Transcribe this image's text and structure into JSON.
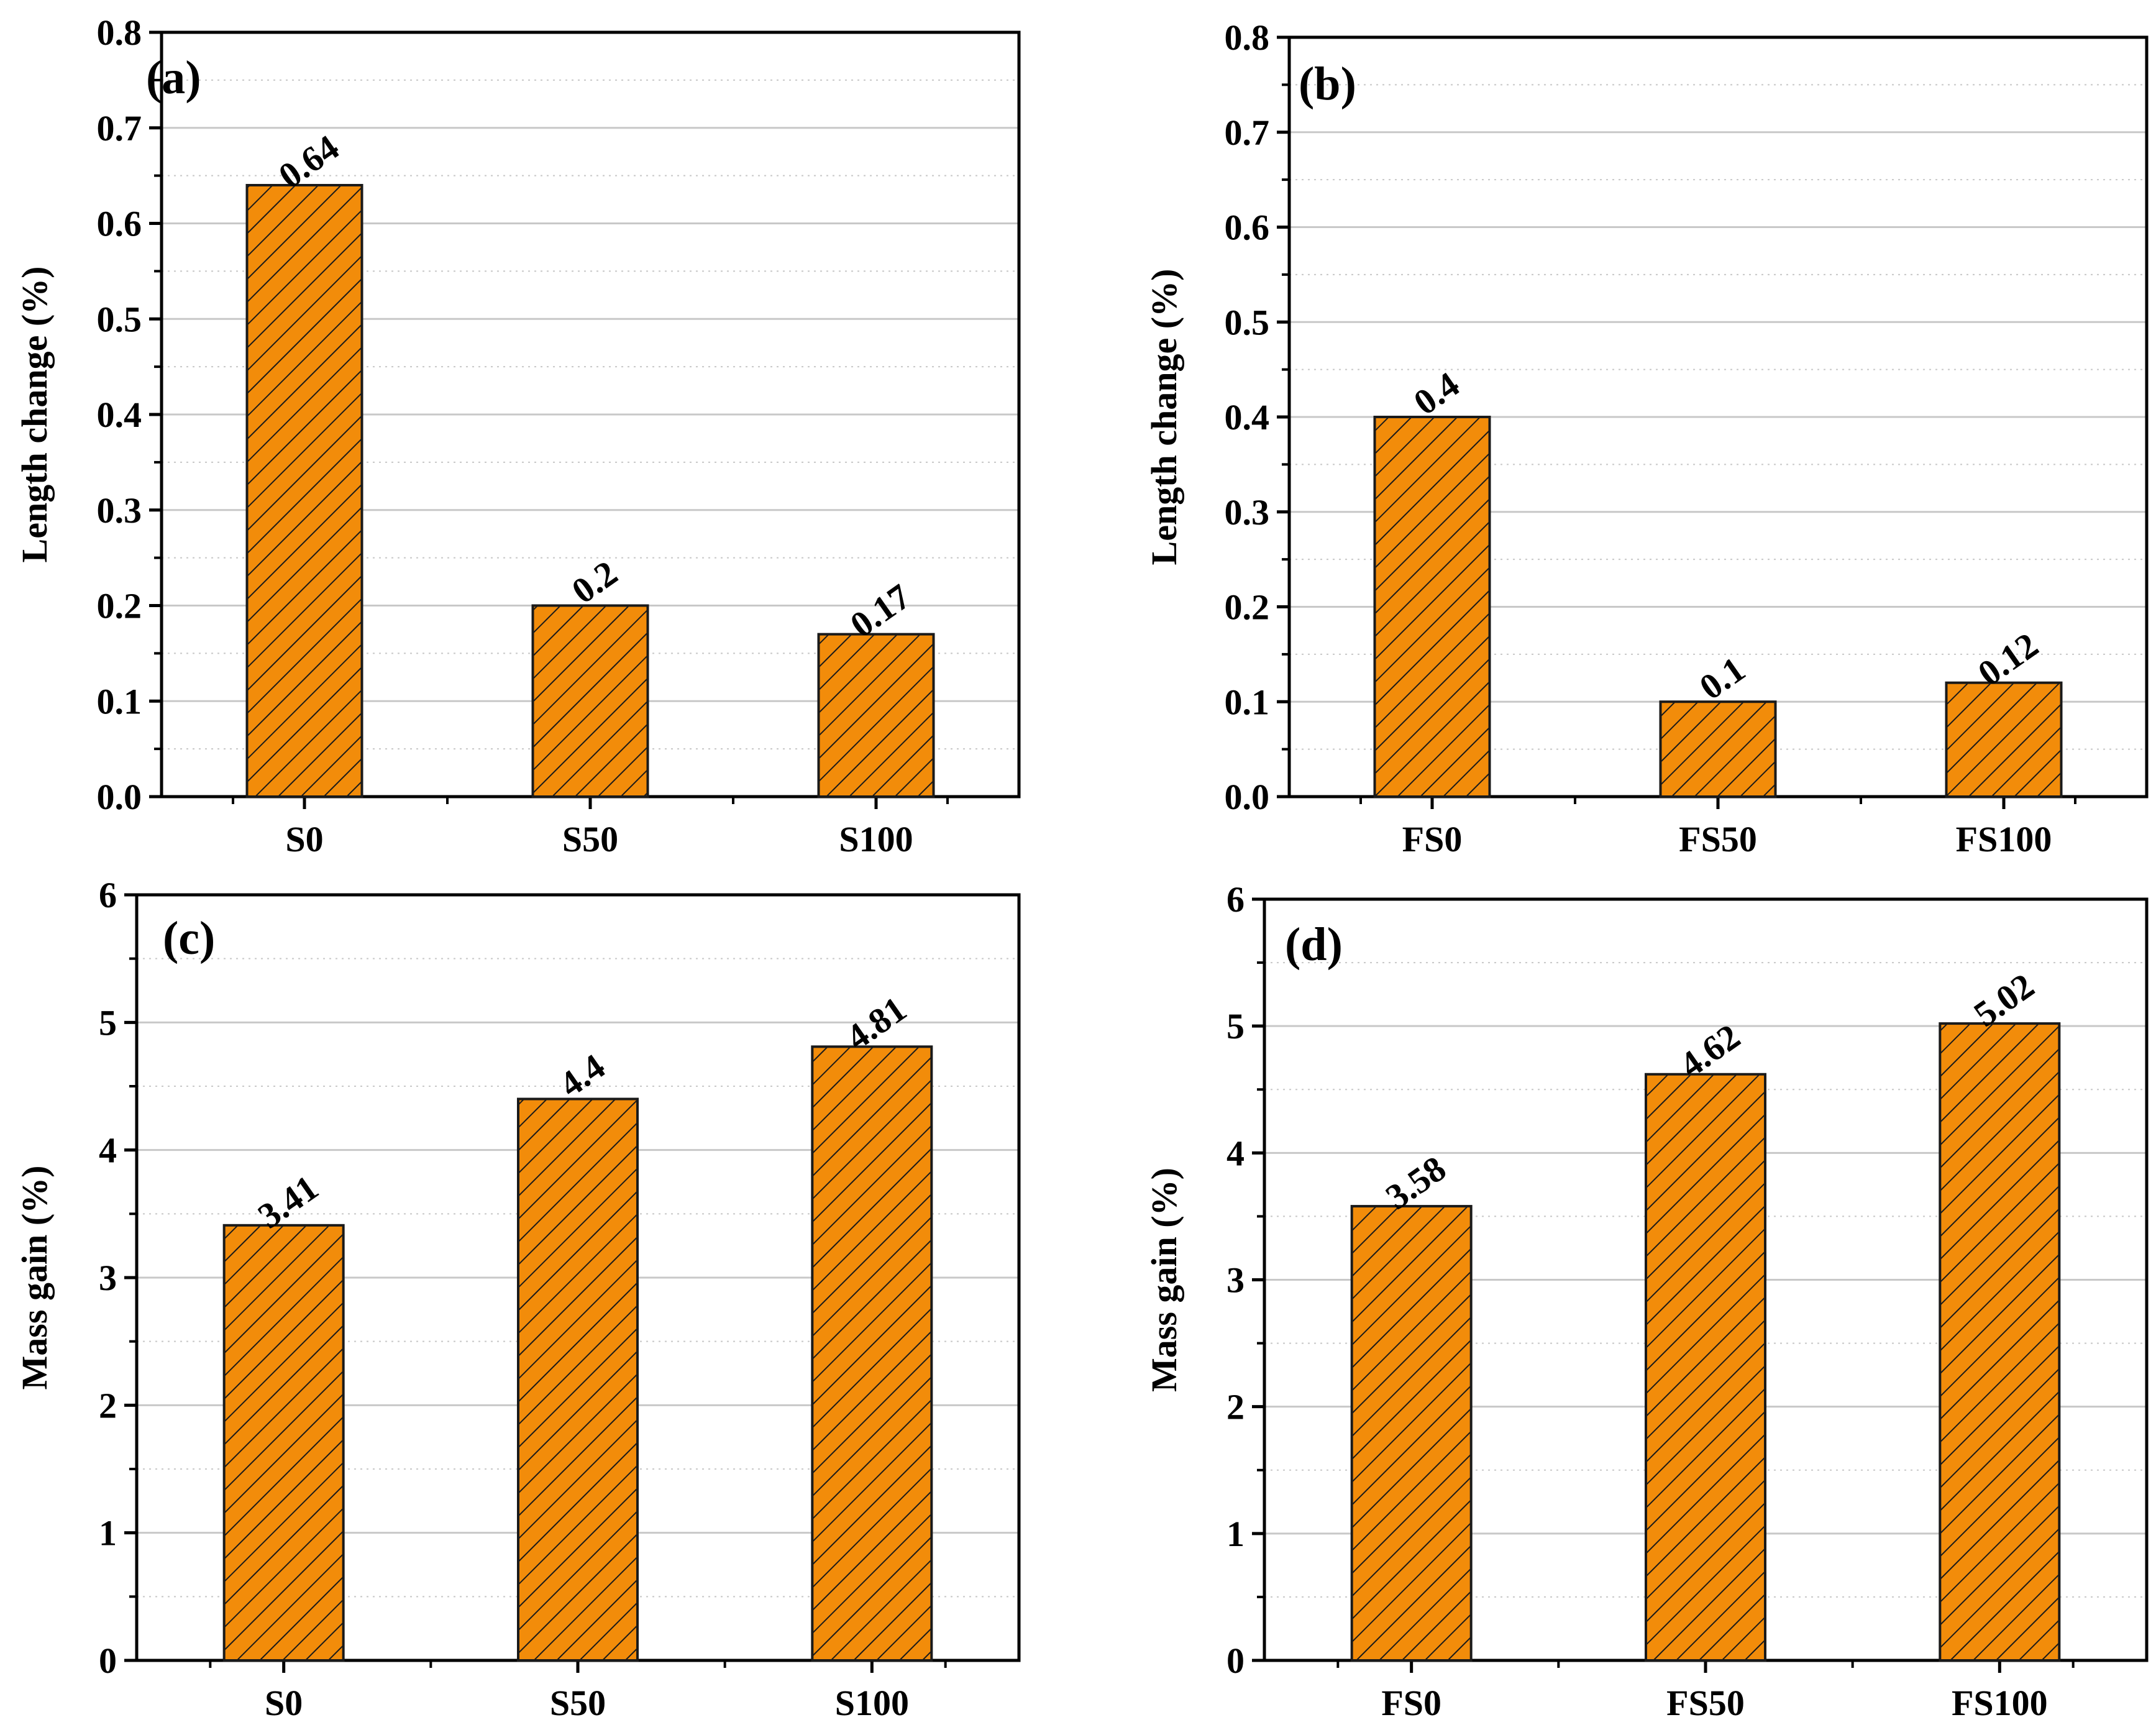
{
  "figure": {
    "bar_fill": "#F28C0A",
    "bar_stroke": "#1a1a1a",
    "hatch_color": "#1a1a1a",
    "grid_color": "#c8c8c8",
    "axis_color": "#000000"
  },
  "chart_data": [
    {
      "id": "a",
      "panel_label": "(a)",
      "type": "bar",
      "categories": [
        "S0",
        "S50",
        "S100"
      ],
      "values": [
        0.64,
        0.2,
        0.17
      ],
      "value_labels": [
        "0.64",
        "0.2",
        "0.17"
      ],
      "xlabel": "",
      "ylabel": "Length change (%)",
      "ylim": [
        0,
        0.8
      ],
      "yticks": [
        0.0,
        0.1,
        0.2,
        0.3,
        0.4,
        0.5,
        0.6,
        0.7,
        0.8
      ],
      "ytick_labels": [
        "0.0",
        "0.1",
        "0.2",
        "0.3",
        "0.4",
        "0.5",
        "0.6",
        "0.7",
        "0.8"
      ],
      "grid": true
    },
    {
      "id": "b",
      "panel_label": "(b)",
      "type": "bar",
      "categories": [
        "FS0",
        "FS50",
        "FS100"
      ],
      "values": [
        0.4,
        0.1,
        0.12
      ],
      "value_labels": [
        "0.4",
        "0.1",
        "0.12"
      ],
      "xlabel": "",
      "ylabel": "Length change (%)",
      "ylim": [
        0,
        0.8
      ],
      "yticks": [
        0.0,
        0.1,
        0.2,
        0.3,
        0.4,
        0.5,
        0.6,
        0.7,
        0.8
      ],
      "ytick_labels": [
        "0.0",
        "0.1",
        "0.2",
        "0.3",
        "0.4",
        "0.5",
        "0.6",
        "0.7",
        "0.8"
      ],
      "grid": true
    },
    {
      "id": "c",
      "panel_label": "(c)",
      "type": "bar",
      "categories": [
        "S0",
        "S50",
        "S100"
      ],
      "values": [
        3.41,
        4.4,
        4.81
      ],
      "value_labels": [
        "3.41",
        "4.4",
        "4.81"
      ],
      "xlabel": "",
      "ylabel": "Mass gain (%)",
      "ylim": [
        0,
        6
      ],
      "yticks": [
        0,
        1,
        2,
        3,
        4,
        5,
        6
      ],
      "ytick_labels": [
        "0",
        "1",
        "2",
        "3",
        "4",
        "5",
        "6"
      ],
      "grid": true
    },
    {
      "id": "d",
      "panel_label": "(d)",
      "type": "bar",
      "categories": [
        "FS0",
        "FS50",
        "FS100"
      ],
      "values": [
        3.58,
        4.62,
        5.02
      ],
      "value_labels": [
        "3.58",
        "4.62",
        "5.02"
      ],
      "xlabel": "",
      "ylabel": "Mass gain (%)",
      "ylim": [
        0,
        6
      ],
      "yticks": [
        0,
        1,
        2,
        3,
        4,
        5,
        6
      ],
      "ytick_labels": [
        "0",
        "1",
        "2",
        "3",
        "4",
        "5",
        "6"
      ],
      "grid": true
    }
  ]
}
